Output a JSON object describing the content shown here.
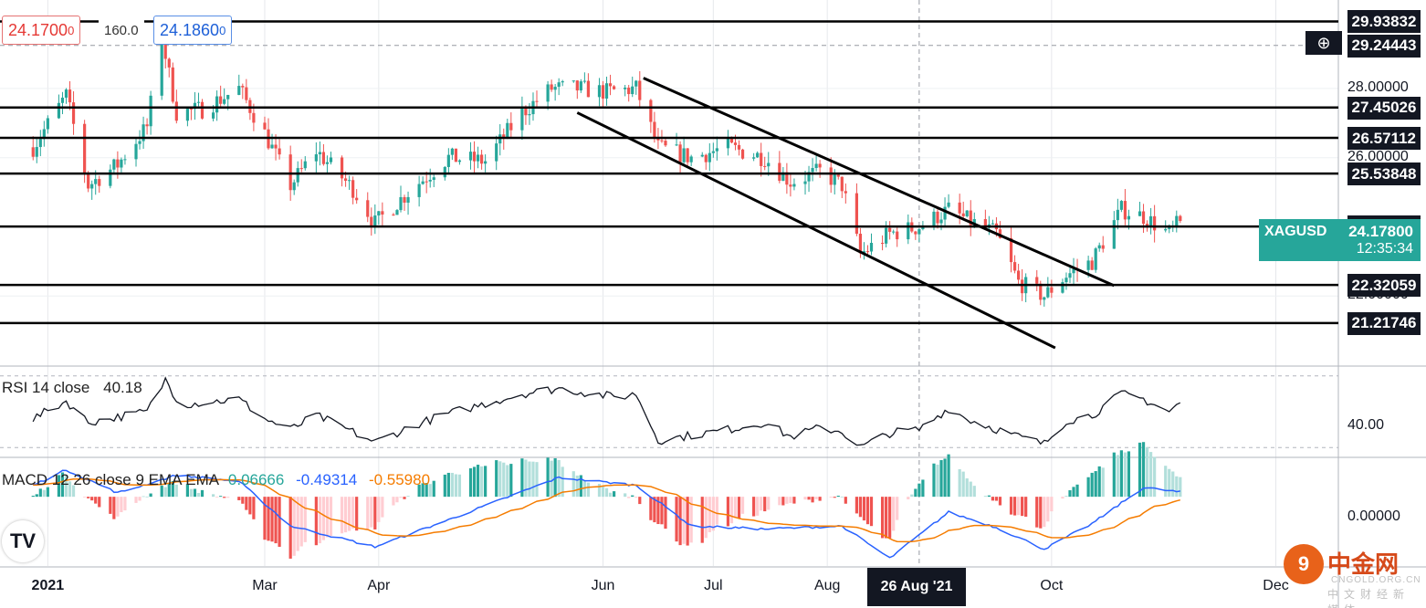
{
  "symbol": "XAGUSD",
  "quote": {
    "sell": "24.1700",
    "sell_suffix": "0",
    "spread": "160.0",
    "buy": "24.1860",
    "buy_suffix": "0",
    "last_price": "24.17800",
    "countdown": "12:35:34"
  },
  "indicators": {
    "rsi": {
      "label": "RSI 14 close",
      "value": "40.18",
      "axis_label": "40.00"
    },
    "macd": {
      "label": "MACD 12 26 close 9 EMA EMA",
      "hist": "0.06666",
      "macd": "-0.49314",
      "signal": "-0.55980",
      "axis_label": "0.00000"
    }
  },
  "price_axis": {
    "labels": [
      "28.00000",
      "26.00000",
      "22.00000"
    ]
  },
  "horizontal_levels": [
    "29.93832",
    "29.24443",
    "27.45026",
    "26.57112",
    "25.53848",
    "24.00737",
    "22.32059",
    "21.21746"
  ],
  "time_axis": {
    "labels": [
      "2021",
      "Mar",
      "Apr",
      "Jun",
      "Jul",
      "Aug",
      "Oct",
      "Dec"
    ],
    "crosshair": "26 Aug '21"
  },
  "tv_logo": "TV",
  "watermark": {
    "logo": "9",
    "name": "中金网",
    "url": "CNGOLD.ORG.CN",
    "sub": "中文财经新媒体"
  },
  "colors": {
    "up": "#26a69a",
    "down": "#ef5350",
    "macd_line": "#2962ff",
    "signal_line": "#f57c00",
    "level_line": "#000000"
  },
  "chart_data": {
    "type": "candlestick",
    "series_note": "",
    "date_range": [
      "Dec 2020",
      "Nov 2021"
    ],
    "price_ylim": [
      20.0,
      30.4
    ],
    "ohlc_waypoints": [
      [
        "2020-12-28",
        26.3
      ],
      [
        "2021-01-06",
        27.8
      ],
      [
        "2021-01-12",
        25.2
      ],
      [
        "2021-01-20",
        25.8
      ],
      [
        "2021-01-28",
        26.9
      ],
      [
        "2021-02-01",
        29.5
      ],
      [
        "2021-02-05",
        27.3
      ],
      [
        "2021-02-12",
        27.4
      ],
      [
        "2021-02-22",
        28.0
      ],
      [
        "2021-03-01",
        26.7
      ],
      [
        "2021-03-08",
        25.2
      ],
      [
        "2021-03-15",
        26.2
      ],
      [
        "2021-03-25",
        25.1
      ],
      [
        "2021-03-31",
        24.1
      ],
      [
        "2021-04-10",
        25.1
      ],
      [
        "2021-04-20",
        26.0
      ],
      [
        "2021-04-30",
        25.9
      ],
      [
        "2021-05-10",
        27.3
      ],
      [
        "2021-05-18",
        28.0
      ],
      [
        "2021-05-25",
        28.0
      ],
      [
        "2021-06-02",
        27.9
      ],
      [
        "2021-06-10",
        28.0
      ],
      [
        "2021-06-16",
        26.3
      ],
      [
        "2021-06-25",
        26.0
      ],
      [
        "2021-07-05",
        26.3
      ],
      [
        "2021-07-15",
        26.0
      ],
      [
        "2021-07-22",
        25.3
      ],
      [
        "2021-07-30",
        25.6
      ],
      [
        "2021-08-05",
        25.2
      ],
      [
        "2021-08-10",
        23.2
      ],
      [
        "2021-08-18",
        23.8
      ],
      [
        "2021-08-26",
        24.0
      ],
      [
        "2021-09-03",
        24.5
      ],
      [
        "2021-09-08",
        24.2
      ],
      [
        "2021-09-16",
        23.8
      ],
      [
        "2021-09-22",
        22.4
      ],
      [
        "2021-09-29",
        22.0
      ],
      [
        "2021-10-05",
        22.6
      ],
      [
        "2021-10-12",
        23.0
      ],
      [
        "2021-10-20",
        24.5
      ],
      [
        "2021-10-26",
        24.3
      ],
      [
        "2021-11-02",
        23.8
      ],
      [
        "2021-11-05",
        24.17
      ]
    ],
    "channel": {
      "upper": [
        [
          "2021-06-12",
          28.3
        ],
        [
          "2021-10-18",
          22.3
        ]
      ],
      "lower": [
        [
          "2021-05-25",
          27.3
        ],
        [
          "2021-10-02",
          20.5
        ]
      ]
    },
    "rsi_ylim": [
      25,
      75
    ],
    "rsi_waypoints": [
      [
        "2020-12-28",
        46
      ],
      [
        "2021-01-06",
        56
      ],
      [
        "2021-01-12",
        44
      ],
      [
        "2021-01-28",
        50
      ],
      [
        "2021-02-02",
        68
      ],
      [
        "2021-02-06",
        54
      ],
      [
        "2021-02-22",
        57
      ],
      [
        "2021-03-01",
        46
      ],
      [
        "2021-03-08",
        40
      ],
      [
        "2021-03-15",
        48
      ],
      [
        "2021-03-31",
        33
      ],
      [
        "2021-04-10",
        42
      ],
      [
        "2021-04-20",
        49
      ],
      [
        "2021-05-10",
        60
      ],
      [
        "2021-05-20",
        63
      ],
      [
        "2021-06-05",
        58
      ],
      [
        "2021-06-10",
        60
      ],
      [
        "2021-06-16",
        34
      ],
      [
        "2021-07-05",
        40
      ],
      [
        "2021-07-15",
        44
      ],
      [
        "2021-07-22",
        36
      ],
      [
        "2021-07-30",
        41
      ],
      [
        "2021-08-05",
        39
      ],
      [
        "2021-08-10",
        30
      ],
      [
        "2021-08-18",
        38
      ],
      [
        "2021-08-26",
        40
      ],
      [
        "2021-09-03",
        52
      ],
      [
        "2021-09-08",
        46
      ],
      [
        "2021-09-22",
        36
      ],
      [
        "2021-09-29",
        32
      ],
      [
        "2021-10-05",
        45
      ],
      [
        "2021-10-12",
        48
      ],
      [
        "2021-10-20",
        60
      ],
      [
        "2021-10-26",
        57
      ],
      [
        "2021-11-02",
        50
      ],
      [
        "2021-11-05",
        55
      ]
    ],
    "macd_ylim": [
      -0.9,
      0.5
    ],
    "macd_waypoints": [
      [
        "2020-12-28",
        0.15
      ],
      [
        "2021-01-06",
        0.35
      ],
      [
        "2021-01-20",
        0.05
      ],
      [
        "2021-02-05",
        0.28
      ],
      [
        "2021-02-22",
        0.2
      ],
      [
        "2021-03-08",
        -0.38
      ],
      [
        "2021-03-31",
        -0.65
      ],
      [
        "2021-04-20",
        -0.3
      ],
      [
        "2021-05-20",
        0.25
      ],
      [
        "2021-06-10",
        0.15
      ],
      [
        "2021-06-25",
        -0.38
      ],
      [
        "2021-07-15",
        -0.42
      ],
      [
        "2021-08-05",
        -0.38
      ],
      [
        "2021-08-18",
        -0.8
      ],
      [
        "2021-09-03",
        -0.2
      ],
      [
        "2021-09-16",
        -0.4
      ],
      [
        "2021-09-29",
        -0.68
      ],
      [
        "2021-10-12",
        -0.35
      ],
      [
        "2021-10-26",
        0.12
      ],
      [
        "2021-11-05",
        0.06
      ]
    ]
  }
}
